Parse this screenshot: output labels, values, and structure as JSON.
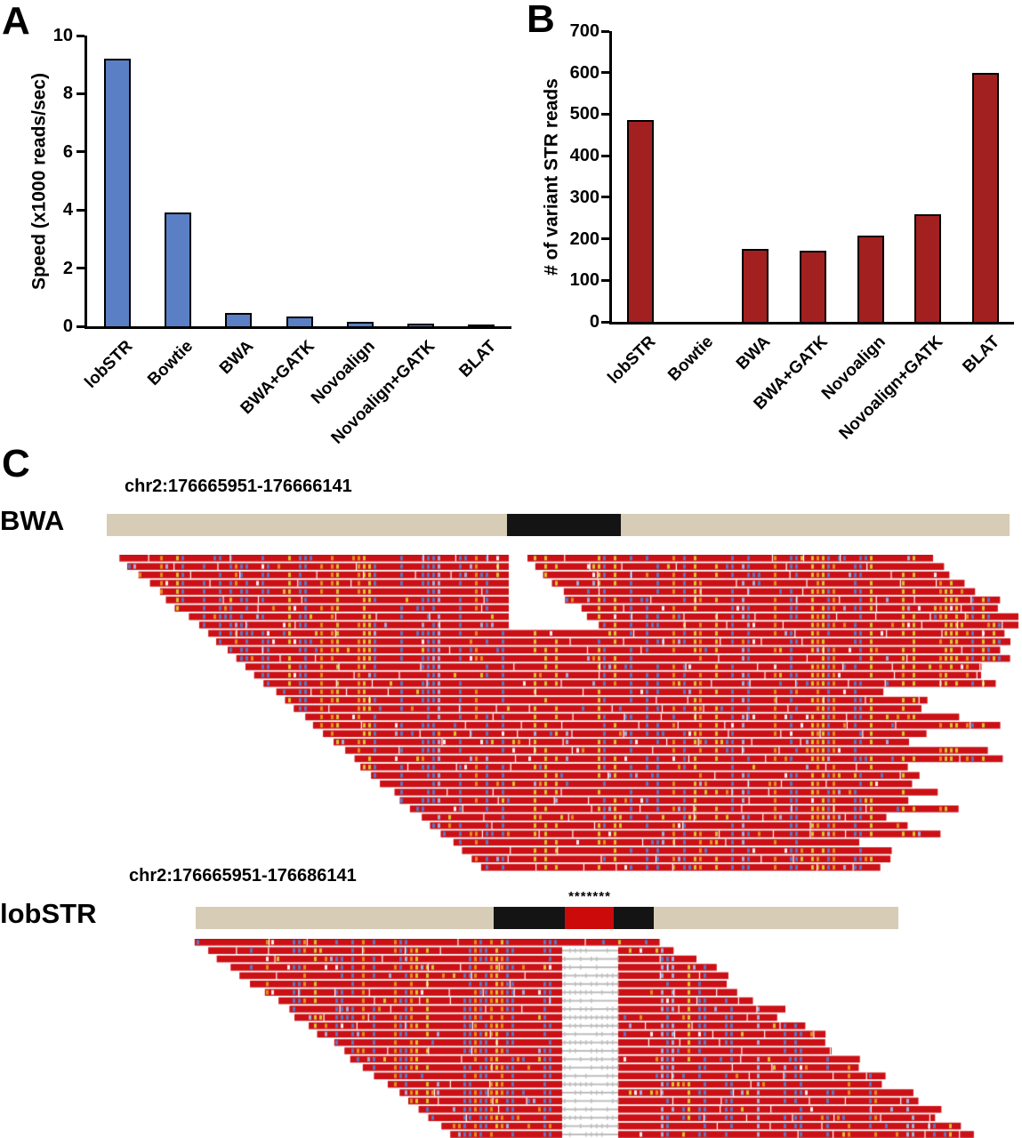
{
  "figure": {
    "panel_a_label": "A",
    "panel_b_label": "B",
    "panel_c_label": "C"
  },
  "chart_data": [
    {
      "id": "panel_a",
      "type": "bar",
      "title": "",
      "xlabel": "",
      "ylabel": "Speed (x1000 reads/sec)",
      "categories": [
        "lobSTR",
        "Bowtie",
        "BWA",
        "BWA+GATK",
        "Novoalign",
        "Novoalign+GATK",
        "BLAT"
      ],
      "values": [
        9.2,
        3.9,
        0.45,
        0.35,
        0.15,
        0.1,
        0.02
      ],
      "ylim": [
        0,
        10
      ],
      "yticks": [
        0,
        2,
        4,
        6,
        8,
        10
      ],
      "grid": false,
      "legend": null,
      "bar_color": "#5b7fc4",
      "bar_border": "#000000"
    },
    {
      "id": "panel_b",
      "type": "bar",
      "title": "",
      "xlabel": "",
      "ylabel": "# of variant STR reads",
      "categories": [
        "lobSTR",
        "Bowtie",
        "BWA",
        "BWA+GATK",
        "Novoalign",
        "Novoalign+GATK",
        "BLAT"
      ],
      "values": [
        485,
        0,
        175,
        172,
        208,
        260,
        600
      ],
      "ylim": [
        0,
        700
      ],
      "yticks": [
        0,
        100,
        200,
        300,
        400,
        500,
        600,
        700
      ],
      "grid": false,
      "legend": null,
      "bar_color": "#a32020",
      "bar_border": "#000000"
    }
  ],
  "igv": {
    "bwa_track": {
      "label": "BWA",
      "region": "chr2:176665951-176666141",
      "ref_color": "#d7ccb5",
      "feature_color": "#141414"
    },
    "lobstr_track": {
      "label": "lobSTR",
      "region": "chr2:176665951-176686141",
      "asterisks": "*******",
      "ref_color": "#d7ccb5",
      "feature_color": "#141414",
      "str_highlight_color": "#cc0a0a"
    },
    "read_style": {
      "base_color": "#cb1016",
      "mismatch_colors": [
        "#5b79c1",
        "#e2901e",
        "#d6c832",
        "#9db3dd",
        "#f3f3f3"
      ],
      "gap_color": "#bdbdbd"
    }
  }
}
